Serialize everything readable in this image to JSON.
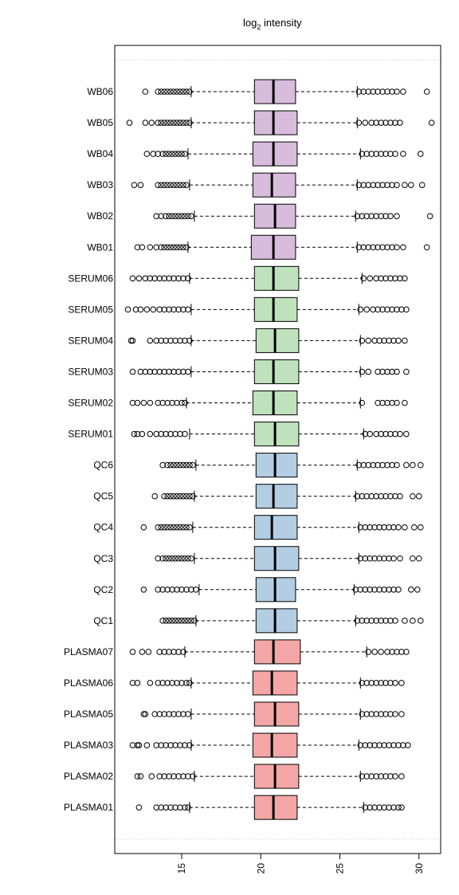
{
  "chart_data": {
    "type": "boxplot",
    "orientation": "horizontal",
    "title": "log",
    "title_subscript": "2",
    "title_suffix": " intensity",
    "xlim": [
      11.5,
      31.5
    ],
    "xticks": [
      15,
      20,
      25,
      30
    ],
    "xtick_labels": [
      "15",
      "20",
      "25",
      "30"
    ],
    "grid": false,
    "colors": {
      "WB": "#d8bcdc",
      "SERUM": "#bfe2bd",
      "QC": "#b3cde3",
      "PLASMA": "#f4a6a6"
    },
    "categories": [
      "WB06",
      "WB05",
      "WB04",
      "WB03",
      "WB02",
      "WB01",
      "SERUM06",
      "SERUM05",
      "SERUM04",
      "SERUM03",
      "SERUM02",
      "SERUM01",
      "QC6",
      "QC5",
      "QC4",
      "QC3",
      "QC2",
      "QC1",
      "PLASMA07",
      "PLASMA06",
      "PLASMA05",
      "PLASMA03",
      "PLASMA02",
      "PLASMA01"
    ],
    "boxes": [
      {
        "label": "WB06",
        "group": "WB",
        "q1": 19.6,
        "median": 20.8,
        "q3": 22.2,
        "whisker_low": 15.6,
        "whisker_high": 26.1,
        "outliers_low": [
          12.7,
          13.5,
          13.7,
          13.9,
          14.1,
          14.3,
          14.5,
          14.7,
          14.9,
          15.1,
          15.3,
          15.5
        ],
        "outliers_high": [
          26.2,
          26.5,
          26.8,
          27.1,
          27.4,
          27.7,
          28.0,
          28.3,
          28.6,
          29.0,
          30.5
        ]
      },
      {
        "label": "WB05",
        "group": "WB",
        "q1": 19.6,
        "median": 20.8,
        "q3": 22.3,
        "whisker_low": 15.6,
        "whisker_high": 26.1,
        "outliers_low": [
          11.7,
          12.7,
          13.1,
          13.5,
          13.7,
          13.9,
          14.1,
          14.3,
          14.5,
          14.7,
          14.9,
          15.1,
          15.3,
          15.5
        ],
        "outliers_high": [
          26.2,
          26.6,
          27.0,
          27.3,
          27.6,
          27.9,
          28.2,
          28.5,
          28.8,
          30.8
        ]
      },
      {
        "label": "WB04",
        "group": "WB",
        "q1": 19.5,
        "median": 20.8,
        "q3": 22.3,
        "whisker_low": 15.4,
        "whisker_high": 26.3,
        "outliers_low": [
          12.8,
          13.2,
          13.5,
          13.8,
          14.0,
          14.2,
          14.4,
          14.6,
          14.8,
          15.0,
          15.2
        ],
        "outliers_high": [
          26.4,
          26.7,
          27.0,
          27.3,
          27.6,
          27.9,
          28.2,
          28.5,
          29.0,
          30.1
        ]
      },
      {
        "label": "WB03",
        "group": "WB",
        "q1": 19.5,
        "median": 20.7,
        "q3": 22.2,
        "whisker_low": 15.5,
        "whisker_high": 26.1,
        "outliers_low": [
          12.0,
          12.4,
          13.5,
          13.7,
          13.9,
          14.1,
          14.3,
          14.5,
          14.7,
          14.9,
          15.1,
          15.3
        ],
        "outliers_high": [
          26.2,
          26.5,
          26.8,
          27.1,
          27.4,
          27.7,
          28.0,
          28.3,
          28.6,
          29.1,
          29.5,
          30.2
        ]
      },
      {
        "label": "WB02",
        "group": "WB",
        "q1": 19.6,
        "median": 20.9,
        "q3": 22.2,
        "whisker_low": 15.8,
        "whisker_high": 26.0,
        "outliers_low": [
          13.4,
          13.7,
          14.0,
          14.2,
          14.4,
          14.6,
          14.8,
          15.0,
          15.2,
          15.4,
          15.6
        ],
        "outliers_high": [
          26.1,
          26.4,
          26.7,
          27.0,
          27.3,
          27.6,
          27.9,
          28.2,
          28.6,
          30.7
        ]
      },
      {
        "label": "WB01",
        "group": "WB",
        "q1": 19.4,
        "median": 20.8,
        "q3": 22.2,
        "whisker_low": 15.4,
        "whisker_high": 26.1,
        "outliers_low": [
          12.2,
          12.5,
          13.0,
          13.4,
          13.7,
          13.9,
          14.1,
          14.3,
          14.5,
          14.7,
          14.9,
          15.1,
          15.3
        ],
        "outliers_high": [
          26.2,
          26.5,
          26.8,
          27.1,
          27.4,
          27.7,
          28.0,
          28.3,
          28.6,
          29.0,
          30.5
        ]
      },
      {
        "label": "SERUM06",
        "group": "SERUM",
        "q1": 19.6,
        "median": 20.8,
        "q3": 22.4,
        "whisker_low": 15.5,
        "whisker_high": 26.4,
        "outliers_low": [
          11.9,
          12.3,
          12.7,
          13.0,
          13.3,
          13.6,
          13.9,
          14.2,
          14.5,
          14.8,
          15.1,
          15.4
        ],
        "outliers_high": [
          26.5,
          26.9,
          27.3,
          27.6,
          27.9,
          28.2,
          28.5,
          28.8,
          29.1
        ]
      },
      {
        "label": "SERUM05",
        "group": "SERUM",
        "q1": 19.6,
        "median": 20.8,
        "q3": 22.3,
        "whisker_low": 15.6,
        "whisker_high": 26.2,
        "outliers_low": [
          11.6,
          12.1,
          12.4,
          12.8,
          13.2,
          13.6,
          13.9,
          14.2,
          14.5,
          14.8,
          15.1,
          15.4
        ],
        "outliers_high": [
          26.3,
          26.7,
          27.1,
          27.4,
          27.7,
          28.0,
          28.3,
          28.6,
          28.9,
          29.2
        ]
      },
      {
        "label": "SERUM04",
        "group": "SERUM",
        "q1": 19.7,
        "median": 20.9,
        "q3": 22.4,
        "whisker_low": 15.6,
        "whisker_high": 26.3,
        "outliers_low": [
          11.8,
          11.9,
          13.0,
          13.4,
          13.7,
          14.0,
          14.3,
          14.6,
          14.9,
          15.2,
          15.5
        ],
        "outliers_high": [
          26.4,
          26.8,
          27.2,
          27.5,
          27.8,
          28.1,
          28.4,
          28.7,
          29.1
        ]
      },
      {
        "label": "SERUM03",
        "group": "SERUM",
        "q1": 19.6,
        "median": 20.8,
        "q3": 22.4,
        "whisker_low": 15.6,
        "whisker_high": 26.3,
        "outliers_low": [
          11.9,
          12.4,
          12.7,
          13.0,
          13.3,
          13.6,
          13.9,
          14.2,
          14.5,
          14.8,
          15.1,
          15.4
        ],
        "outliers_high": [
          26.4,
          26.8,
          27.4,
          27.7,
          28.0,
          28.3,
          28.6,
          29.2
        ]
      },
      {
        "label": "SERUM02",
        "group": "SERUM",
        "q1": 19.5,
        "median": 20.8,
        "q3": 22.3,
        "whisker_low": 15.3,
        "whisker_high": 26.3,
        "outliers_low": [
          11.9,
          12.2,
          12.6,
          13.0,
          13.5,
          13.8,
          14.1,
          14.4,
          14.7,
          15.0,
          15.2
        ],
        "outliers_high": [
          26.4,
          27.4,
          27.7,
          28.0,
          28.3,
          28.6,
          29.1
        ]
      },
      {
        "label": "SERUM01",
        "group": "SERUM",
        "q1": 19.6,
        "median": 20.9,
        "q3": 22.4,
        "whisker_low": 15.5,
        "whisker_high": 26.5,
        "outliers_low": [
          12.0,
          12.2,
          12.5,
          13.0,
          13.4,
          13.7,
          14.0,
          14.3,
          14.6,
          14.9,
          15.2
        ],
        "outliers_high": [
          26.6,
          26.9,
          27.3,
          27.6,
          27.9,
          28.2,
          28.5,
          28.8,
          29.2
        ]
      },
      {
        "label": "QC6",
        "group": "QC",
        "q1": 19.7,
        "median": 20.9,
        "q3": 22.3,
        "whisker_low": 15.9,
        "whisker_high": 26.1,
        "outliers_low": [
          13.8,
          14.1,
          14.3,
          14.5,
          14.7,
          14.9,
          15.1,
          15.3,
          15.5,
          15.7
        ],
        "outliers_high": [
          26.2,
          26.5,
          26.8,
          27.1,
          27.4,
          27.7,
          28.0,
          28.3,
          28.6,
          29.2,
          29.6,
          30.1
        ]
      },
      {
        "label": "QC5",
        "group": "QC",
        "q1": 19.7,
        "median": 20.8,
        "q3": 22.3,
        "whisker_low": 15.8,
        "whisker_high": 26.0,
        "outliers_low": [
          13.3,
          13.9,
          14.1,
          14.3,
          14.5,
          14.7,
          14.9,
          15.1,
          15.3,
          15.5,
          15.7
        ],
        "outliers_high": [
          26.1,
          26.4,
          26.7,
          27.0,
          27.3,
          27.6,
          27.9,
          28.2,
          28.5,
          28.8,
          29.6,
          30.0
        ]
      },
      {
        "label": "QC4",
        "group": "QC",
        "q1": 19.6,
        "median": 20.7,
        "q3": 22.3,
        "whisker_low": 15.7,
        "whisker_high": 26.2,
        "outliers_low": [
          12.6,
          13.5,
          13.7,
          13.9,
          14.1,
          14.3,
          14.5,
          14.7,
          14.9,
          15.1,
          15.3,
          15.5
        ],
        "outliers_high": [
          26.3,
          26.6,
          26.9,
          27.2,
          27.5,
          27.8,
          28.1,
          28.4,
          28.7,
          29.1,
          29.7,
          30.1
        ]
      },
      {
        "label": "QC3",
        "group": "QC",
        "q1": 19.6,
        "median": 20.9,
        "q3": 22.4,
        "whisker_low": 15.8,
        "whisker_high": 26.2,
        "outliers_low": [
          13.5,
          13.8,
          14.0,
          14.2,
          14.4,
          14.6,
          14.8,
          15.0,
          15.2,
          15.4,
          15.6
        ],
        "outliers_high": [
          26.3,
          26.6,
          26.9,
          27.2,
          27.5,
          27.8,
          28.1,
          28.4,
          28.8,
          29.6,
          30.0
        ]
      },
      {
        "label": "QC2",
        "group": "QC",
        "q1": 19.7,
        "median": 20.9,
        "q3": 22.2,
        "whisker_low": 16.1,
        "whisker_high": 25.9,
        "outliers_low": [
          12.6,
          13.5,
          13.8,
          14.1,
          14.4,
          14.7,
          15.0,
          15.3,
          15.6,
          15.9
        ],
        "outliers_high": [
          26.0,
          26.3,
          26.6,
          26.9,
          27.2,
          27.5,
          27.8,
          28.1,
          28.4,
          28.7,
          29.5,
          29.9
        ]
      },
      {
        "label": "QC1",
        "group": "QC",
        "q1": 19.7,
        "median": 20.9,
        "q3": 22.3,
        "whisker_low": 15.9,
        "whisker_high": 26.0,
        "outliers_low": [
          13.8,
          14.0,
          14.2,
          14.4,
          14.6,
          14.8,
          15.0,
          15.2,
          15.4,
          15.6,
          15.8
        ],
        "outliers_high": [
          26.1,
          26.4,
          26.7,
          27.0,
          27.3,
          27.6,
          27.9,
          28.2,
          28.5,
          29.1,
          29.6,
          30.1
        ]
      },
      {
        "label": "PLASMA07",
        "group": "PLASMA",
        "q1": 19.6,
        "median": 20.8,
        "q3": 22.5,
        "whisker_low": 15.2,
        "whisker_high": 26.7,
        "outliers_low": [
          11.9,
          12.5,
          12.9,
          13.6,
          13.9,
          14.2,
          14.5,
          14.8,
          15.1
        ],
        "outliers_high": [
          26.8,
          27.2,
          27.6,
          28.0,
          28.3,
          28.6,
          28.9,
          29.2
        ]
      },
      {
        "label": "PLASMA06",
        "group": "PLASMA",
        "q1": 19.5,
        "median": 20.7,
        "q3": 22.3,
        "whisker_low": 15.6,
        "whisker_high": 26.3,
        "outliers_low": [
          11.9,
          12.2,
          13.0,
          13.5,
          13.8,
          14.1,
          14.4,
          14.7,
          15.0,
          15.3,
          15.5
        ],
        "outliers_high": [
          26.4,
          26.7,
          27.0,
          27.3,
          27.6,
          27.9,
          28.2,
          28.5,
          28.9
        ]
      },
      {
        "label": "PLASMA05",
        "group": "PLASMA",
        "q1": 19.6,
        "median": 20.9,
        "q3": 22.4,
        "whisker_low": 15.6,
        "whisker_high": 26.3,
        "outliers_low": [
          12.6,
          12.7,
          13.3,
          13.6,
          13.9,
          14.2,
          14.5,
          14.8,
          15.1,
          15.4
        ],
        "outliers_high": [
          26.4,
          26.7,
          27.0,
          27.3,
          27.6,
          27.9,
          28.2,
          28.5,
          28.9
        ]
      },
      {
        "label": "PLASMA03",
        "group": "PLASMA",
        "q1": 19.5,
        "median": 20.7,
        "q3": 22.3,
        "whisker_low": 15.6,
        "whisker_high": 26.2,
        "outliers_low": [
          11.9,
          12.2,
          12.3,
          12.8,
          13.4,
          13.7,
          14.0,
          14.3,
          14.6,
          14.9,
          15.2,
          15.5
        ],
        "outliers_high": [
          26.3,
          26.6,
          26.9,
          27.2,
          27.5,
          27.8,
          28.1,
          28.4,
          28.7,
          29.0,
          29.3
        ]
      },
      {
        "label": "PLASMA02",
        "group": "PLASMA",
        "q1": 19.6,
        "median": 20.9,
        "q3": 22.4,
        "whisker_low": 15.8,
        "whisker_high": 26.3,
        "outliers_low": [
          12.2,
          12.4,
          13.1,
          13.6,
          13.9,
          14.2,
          14.5,
          14.8,
          15.1,
          15.4,
          15.7
        ],
        "outliers_high": [
          26.4,
          26.7,
          27.0,
          27.3,
          27.6,
          27.9,
          28.2,
          28.5,
          28.9
        ]
      },
      {
        "label": "PLASMA01",
        "group": "PLASMA",
        "q1": 19.6,
        "median": 20.8,
        "q3": 22.3,
        "whisker_low": 15.5,
        "whisker_high": 26.5,
        "outliers_low": [
          12.3,
          13.4,
          13.7,
          14.0,
          14.3,
          14.6,
          14.9,
          15.2,
          15.4
        ],
        "outliers_high": [
          26.6,
          26.9,
          27.2,
          27.5,
          27.8,
          28.1,
          28.4,
          28.7,
          28.9
        ]
      }
    ]
  }
}
